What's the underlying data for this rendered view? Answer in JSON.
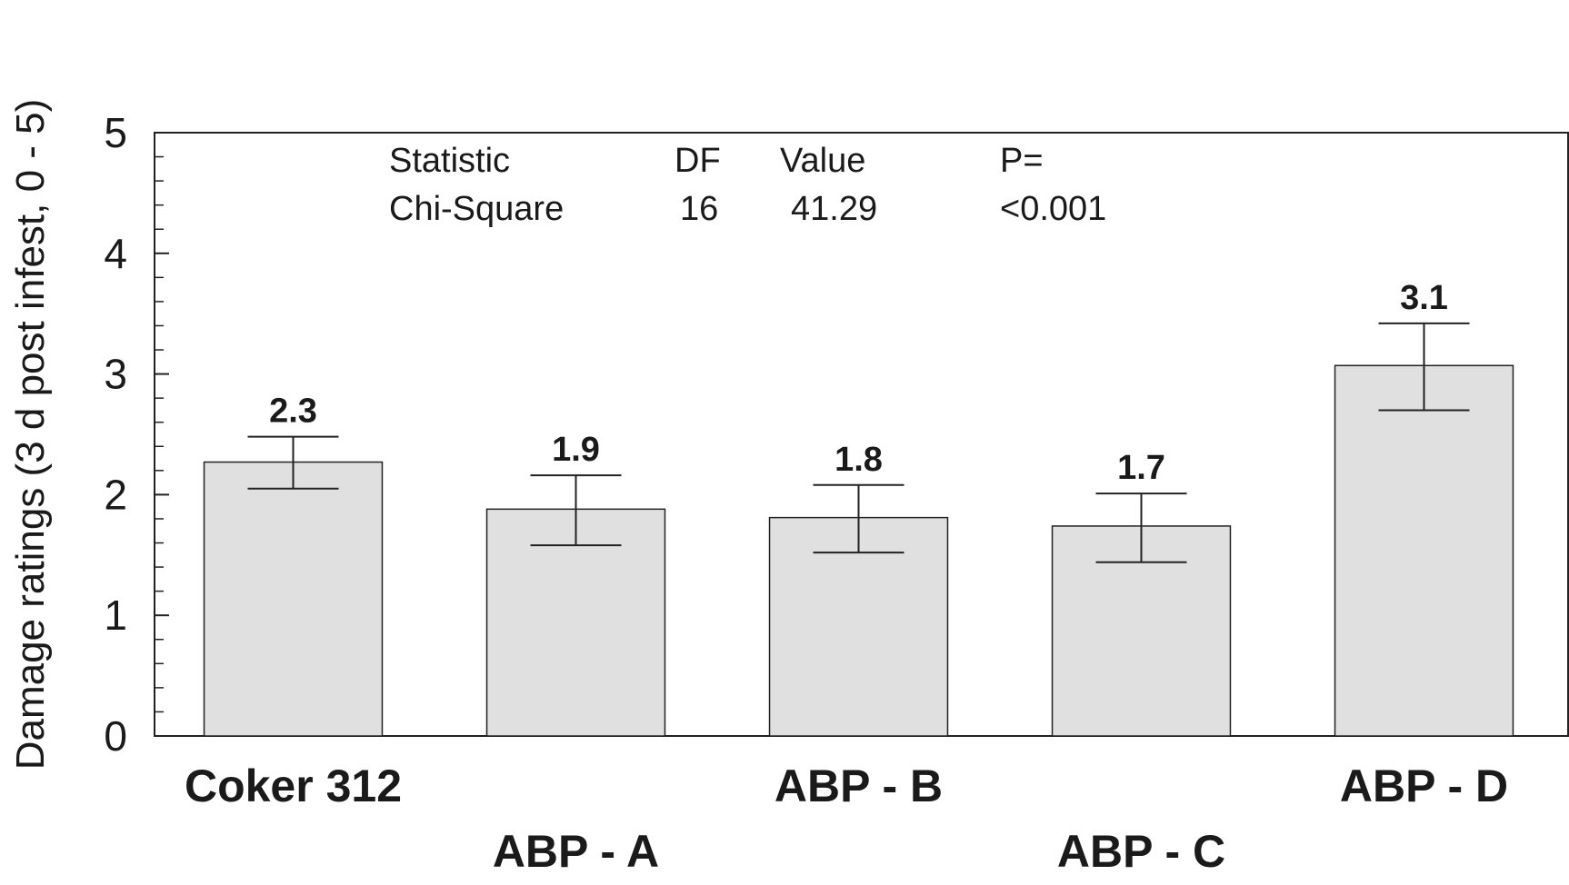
{
  "chart_data": {
    "type": "bar",
    "categories": [
      "Coker 312",
      "ABP - A",
      "ABP - B",
      "ABP - C",
      "ABP - D"
    ],
    "values": [
      2.27,
      1.88,
      1.81,
      1.74,
      3.07
    ],
    "data_labels": [
      "2.3",
      "1.9",
      "1.8",
      "1.7",
      "3.1"
    ],
    "error_upper": [
      2.48,
      2.16,
      2.08,
      2.01,
      3.42
    ],
    "error_lower": [
      2.05,
      1.58,
      1.52,
      1.44,
      2.7
    ],
    "xlabel": "",
    "ylabel": "Damage ratings (3 d  post infest, 0 - 5)",
    "ylim": [
      0,
      5
    ],
    "yticks": [
      "0",
      "1",
      "2",
      "3",
      "4",
      "5"
    ],
    "grid": false,
    "bar_color": "#e0e0e0",
    "bar_edge_color": "#222222",
    "stats_table": {
      "headers": [
        "Statistic",
        "DF",
        "Value",
        "P="
      ],
      "row": [
        "Chi-Square",
        "16",
        "41.29",
        "<0.001"
      ]
    }
  }
}
